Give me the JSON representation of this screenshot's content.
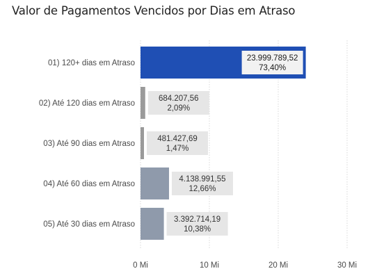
{
  "chart_data": {
    "type": "bar",
    "orientation": "horizontal",
    "title": "Valor de Pagamentos Vencidos por Dias em Atraso",
    "categories": [
      "01) 120+ dias em Atraso",
      "02) Até 120 dias em Atraso",
      "03) Até 90 dias em Atraso",
      "04) Até 60 dias em Atraso",
      "05) Até 30 dias em Atraso"
    ],
    "values": [
      23999789.52,
      684207.56,
      481427.69,
      4138991.55,
      3392714.19
    ],
    "value_labels": [
      "23.999.789,52",
      "684.207,56",
      "481.427,69",
      "4.138.991,55",
      "3.392.714,19"
    ],
    "percent_labels": [
      "73,40%",
      "2,09%",
      "1,47%",
      "12,66%",
      "10,38%"
    ],
    "xlim": [
      0,
      30000000
    ],
    "xticks": [
      0,
      10000000,
      20000000,
      30000000
    ],
    "xtick_labels": [
      "0 Mi",
      "10 Mi",
      "20 Mi",
      "30 Mi"
    ],
    "grid": true,
    "colors": {
      "highlight_bar": "#1f4fb4",
      "bar": "#8f9aab",
      "small_bar": "#9a9a9a",
      "label_box": "#e6e6e6",
      "highlight_label_box": "#f2f2f2",
      "grid": "#d8d8d8"
    }
  }
}
